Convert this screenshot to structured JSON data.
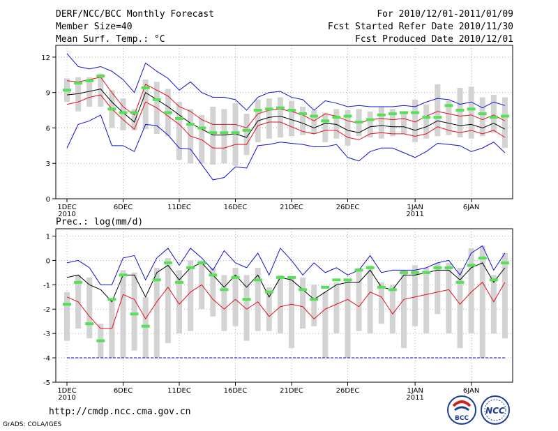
{
  "header": {
    "title": "DERF/NCC/BCC Monthly Forecast",
    "member_size": "Member Size=40",
    "variable_top": "Mean Surf. Temp.: °C",
    "period": "For 2010/12/01-2011/01/09",
    "started": "Fcst Started Refer Date 2010/11/30",
    "produced": "Fcst Produced Date 2010/12/01"
  },
  "footer": {
    "url": "http://cmdp.ncc.cma.gov.cn",
    "credit": "GrADS: COLA/IGES",
    "logo_bcc": "BCC",
    "logo_ncc": "NCC"
  },
  "colors": {
    "box": "#d3d3d3",
    "median": "#55e055",
    "mean": "#000000",
    "spread": "#e01020",
    "extreme": "#1010d0",
    "threshold": "#1010d0"
  },
  "chart_data": [
    {
      "type": "box-plume",
      "title": "Mean Surf. Temp.: °C",
      "xlabel": "",
      "ylabel": "",
      "x_tick_labels": [
        {
          "day": 1,
          "label": "1DEC",
          "sub": "2010"
        },
        {
          "day": 6,
          "label": "6DEC",
          "sub": ""
        },
        {
          "day": 11,
          "label": "11DEC",
          "sub": ""
        },
        {
          "day": 16,
          "label": "16DEC",
          "sub": ""
        },
        {
          "day": 21,
          "label": "21DEC",
          "sub": ""
        },
        {
          "day": 26,
          "label": "26DEC",
          "sub": ""
        },
        {
          "day": 32,
          "label": "1JAN",
          "sub": "2011"
        },
        {
          "day": 37,
          "label": "6JAN",
          "sub": ""
        }
      ],
      "ylim": [
        0,
        13
      ],
      "y_ticks": [
        0,
        3,
        6,
        9,
        12
      ],
      "grid": true,
      "days": [
        1,
        2,
        3,
        4,
        5,
        6,
        7,
        8,
        9,
        10,
        11,
        12,
        13,
        14,
        15,
        16,
        17,
        18,
        19,
        20,
        21,
        22,
        23,
        24,
        25,
        26,
        27,
        28,
        29,
        30,
        31,
        32,
        33,
        34,
        35,
        36,
        37,
        38,
        39,
        40
      ],
      "box_high": [
        10.2,
        10.3,
        10.3,
        10.6,
        9.2,
        8.5,
        7.6,
        10.1,
        9.9,
        9.3,
        8.2,
        7.6,
        7.1,
        7.8,
        7.6,
        8.1,
        7.2,
        8.4,
        8.5,
        8.6,
        8.3,
        7.8,
        7.5,
        7.3,
        7.6,
        7.5,
        7.6,
        7.4,
        7.8,
        7.6,
        7.4,
        8.4,
        8.0,
        9.7,
        8.3,
        9.4,
        9.5,
        8.6,
        8.8,
        8.6
      ],
      "box_low": [
        8.2,
        7.4,
        7.8,
        7.8,
        6.0,
        5.8,
        5.8,
        5.9,
        5.5,
        5.3,
        3.3,
        3.0,
        3.0,
        2.9,
        3.0,
        2.8,
        3.7,
        4.8,
        5.1,
        5.2,
        5.3,
        5.4,
        5.5,
        4.8,
        5.1,
        4.5,
        5.3,
        5.2,
        5.1,
        5.3,
        5.5,
        4.8,
        5.1,
        5.3,
        5.4,
        5.2,
        5.1,
        5.3,
        5.6,
        4.3
      ],
      "median": [
        9.2,
        9.8,
        10.0,
        10.4,
        7.6,
        7.3,
        7.3,
        9.4,
        8.4,
        7.3,
        6.8,
        6.3,
        6.0,
        5.6,
        5.6,
        5.6,
        5.8,
        7.5,
        7.6,
        7.7,
        7.5,
        7.2,
        7.0,
        6.6,
        6.9,
        7.0,
        6.5,
        6.7,
        7.1,
        7.2,
        7.3,
        7.3,
        6.9,
        6.9,
        7.9,
        7.5,
        7.6,
        7.2,
        6.9,
        7.0
      ],
      "series": [
        {
          "name": "max",
          "color": "#1010d0",
          "values": [
            12.3,
            11.2,
            11.0,
            11.2,
            10.8,
            10.1,
            9.0,
            11.5,
            10.8,
            10.2,
            9.2,
            9.9,
            9.0,
            8.6,
            8.6,
            8.4,
            7.5,
            8.6,
            9.0,
            9.1,
            8.6,
            8.4,
            7.5,
            8.3,
            8.1,
            7.8,
            7.9,
            7.8,
            7.8,
            7.8,
            7.9,
            7.8,
            8.2,
            8.5,
            8.4,
            8.0,
            8.2,
            7.7,
            8.2,
            7.9
          ]
        },
        {
          "name": "mean+sd",
          "color": "#e01020",
          "values": [
            10.0,
            9.9,
            10.1,
            10.3,
            9.0,
            7.8,
            7.1,
            9.7,
            9.2,
            8.7,
            7.8,
            7.4,
            6.7,
            6.3,
            6.3,
            6.3,
            6.0,
            7.2,
            7.5,
            7.6,
            7.4,
            7.1,
            6.6,
            7.2,
            7.0,
            6.6,
            6.4,
            6.7,
            6.8,
            6.7,
            6.8,
            6.5,
            7.0,
            7.4,
            7.2,
            7.0,
            7.1,
            6.7,
            7.1,
            6.6
          ]
        },
        {
          "name": "mean",
          "color": "#000000",
          "values": [
            8.8,
            8.9,
            9.1,
            9.3,
            8.2,
            7.3,
            6.5,
            9.0,
            8.4,
            7.8,
            7.1,
            6.4,
            5.9,
            5.4,
            5.4,
            5.5,
            5.2,
            6.6,
            6.9,
            7.0,
            6.7,
            6.4,
            6.0,
            6.4,
            6.3,
            5.8,
            5.6,
            6.1,
            6.2,
            6.1,
            6.1,
            5.8,
            6.1,
            6.6,
            6.4,
            6.2,
            6.3,
            6.0,
            6.4,
            5.9
          ]
        },
        {
          "name": "mean-sd",
          "color": "#e01020",
          "values": [
            8.0,
            8.2,
            8.6,
            8.8,
            7.6,
            6.7,
            5.9,
            8.2,
            7.7,
            7.0,
            6.3,
            5.3,
            5.0,
            4.3,
            4.3,
            4.6,
            4.6,
            6.2,
            6.5,
            6.5,
            6.1,
            5.7,
            5.5,
            5.8,
            5.8,
            5.2,
            5.0,
            5.5,
            5.6,
            5.5,
            5.5,
            5.3,
            5.5,
            6.1,
            5.8,
            5.6,
            5.8,
            5.5,
            5.8,
            5.2
          ]
        },
        {
          "name": "min",
          "color": "#1010d0",
          "values": [
            4.3,
            6.3,
            6.6,
            7.1,
            4.5,
            4.5,
            4.0,
            6.3,
            6.2,
            5.4,
            4.3,
            4.2,
            2.9,
            1.6,
            1.8,
            2.7,
            2.6,
            4.5,
            4.6,
            4.8,
            4.7,
            4.6,
            4.4,
            4.4,
            4.6,
            3.5,
            3.2,
            4.0,
            4.3,
            4.3,
            3.9,
            3.5,
            4.0,
            4.7,
            4.6,
            4.5,
            4.0,
            4.3,
            4.8,
            3.9
          ]
        }
      ]
    },
    {
      "type": "box-plume",
      "title": "Prec.: log(mm/d)",
      "xlabel": "",
      "ylabel": "",
      "x_tick_labels": [
        {
          "day": 1,
          "label": "1DEC",
          "sub": "2010"
        },
        {
          "day": 6,
          "label": "6DEC",
          "sub": ""
        },
        {
          "day": 11,
          "label": "11DEC",
          "sub": ""
        },
        {
          "day": 16,
          "label": "16DEC",
          "sub": ""
        },
        {
          "day": 21,
          "label": "21DEC",
          "sub": ""
        },
        {
          "day": 26,
          "label": "26DEC",
          "sub": ""
        },
        {
          "day": 32,
          "label": "1JAN",
          "sub": "2011"
        },
        {
          "day": 37,
          "label": "6JAN",
          "sub": ""
        }
      ],
      "ylim": [
        -5,
        1.3
      ],
      "y_ticks": [
        -5,
        -4,
        -3,
        -2,
        -1,
        0,
        1
      ],
      "grid": true,
      "threshold": -4,
      "days": [
        1,
        2,
        3,
        4,
        5,
        6,
        7,
        8,
        9,
        10,
        11,
        12,
        13,
        14,
        15,
        16,
        17,
        18,
        19,
        20,
        21,
        22,
        23,
        24,
        25,
        26,
        27,
        28,
        29,
        30,
        31,
        32,
        33,
        34,
        35,
        36,
        37,
        38,
        39,
        40
      ],
      "box_high": [
        -1.3,
        -0.6,
        -0.7,
        -2.6,
        -1.6,
        -0.4,
        -0.5,
        -1.5,
        -0.3,
        0.1,
        -0.4,
        0.0,
        0.0,
        -0.3,
        -0.6,
        -0.3,
        -0.6,
        -0.3,
        -1.1,
        -0.6,
        -0.7,
        -0.7,
        -1.0,
        -1.3,
        -0.9,
        -0.8,
        -0.3,
        -0.2,
        -0.9,
        -1.0,
        -0.4,
        -0.2,
        -0.3,
        -0.1,
        -0.1,
        -0.3,
        0.5,
        0.6,
        -0.6,
        0.3
      ],
      "box_low": [
        -3.3,
        -2.8,
        -3.2,
        -4.0,
        -4.0,
        -4.0,
        -3.7,
        -4.0,
        -4.0,
        -3.4,
        -3.0,
        -2.9,
        -2.0,
        -2.3,
        -2.9,
        -2.7,
        -3.3,
        -2.9,
        -2.9,
        -3.0,
        -3.6,
        -2.8,
        -2.7,
        -4.0,
        -3.0,
        -4.0,
        -2.9,
        -3.0,
        -2.6,
        -3.0,
        -3.6,
        -2.7,
        -3.0,
        -2.2,
        -3.0,
        -3.6,
        -3.0,
        -4.0,
        -3.0,
        -3.2
      ],
      "median": [
        -1.8,
        -0.9,
        -2.6,
        -3.3,
        -1.6,
        -0.6,
        -2.2,
        -2.7,
        -0.8,
        -0.1,
        -0.9,
        -0.3,
        -0.1,
        -0.6,
        -1.2,
        -0.7,
        -1.6,
        -0.8,
        -1.3,
        -0.7,
        -0.7,
        -1.2,
        -1.6,
        -1.1,
        -0.8,
        -0.8,
        -0.4,
        -0.3,
        -1.1,
        -1.2,
        -0.5,
        -0.5,
        -0.5,
        -0.3,
        -0.3,
        -0.9,
        -0.2,
        0.1,
        -0.8,
        -0.1
      ],
      "series": [
        {
          "name": "max",
          "color": "#1010d0",
          "values": [
            -0.1,
            0.0,
            -0.3,
            -1.0,
            -1.0,
            0.1,
            0.2,
            -0.8,
            0.1,
            0.5,
            -0.2,
            0.5,
            0.1,
            -0.4,
            0.4,
            -0.1,
            -0.3,
            0.3,
            -0.6,
            0.5,
            0.0,
            -0.6,
            -0.1,
            -0.5,
            -0.3,
            -0.6,
            -0.4,
            0.2,
            -0.5,
            -0.4,
            -0.4,
            -0.4,
            -0.3,
            -0.1,
            0.0,
            -0.6,
            0.3,
            0.6,
            -0.4,
            0.3
          ]
        },
        {
          "name": "mean",
          "color": "#000000",
          "values": [
            -0.7,
            -0.6,
            -1.0,
            -1.2,
            -1.7,
            -0.6,
            -0.6,
            -1.5,
            -0.5,
            -0.2,
            -0.8,
            -0.3,
            -0.1,
            -0.6,
            -1.1,
            -0.6,
            -1.1,
            -0.6,
            -1.5,
            -0.7,
            -0.8,
            -1.2,
            -1.6,
            -1.3,
            -1.0,
            -0.9,
            -0.9,
            -0.4,
            -1.1,
            -1.2,
            -0.6,
            -0.6,
            -0.5,
            -0.4,
            -0.4,
            -0.8,
            -0.3,
            -0.1,
            -0.9,
            -0.3
          ]
        },
        {
          "name": "mean-sd",
          "color": "#e01020",
          "values": [
            -1.5,
            -1.7,
            -2.3,
            -2.8,
            -2.8,
            -1.4,
            -1.6,
            -2.4,
            -1.7,
            -1.1,
            -1.8,
            -1.3,
            -1.0,
            -1.6,
            -2.0,
            -1.6,
            -2.0,
            -1.7,
            -2.3,
            -1.9,
            -1.8,
            -1.9,
            -2.4,
            -2.0,
            -1.8,
            -1.6,
            -1.9,
            -1.3,
            -1.5,
            -2.2,
            -1.6,
            -1.5,
            -1.4,
            -1.3,
            -1.2,
            -1.8,
            -1.3,
            -0.9,
            -1.7,
            -0.9
          ]
        },
        {
          "name": "min",
          "color": "#1010d0",
          "values": [
            -4.0,
            -4.0,
            -4.0,
            -4.0,
            -4.0,
            -4.0,
            -4.0,
            -4.0,
            -4.0,
            -4.0,
            -4.0,
            -4.0,
            -4.0,
            -4.0,
            -4.0,
            -4.0,
            -4.0,
            -4.0,
            -4.0,
            -4.0,
            -4.0,
            -4.0,
            -4.0,
            -4.0,
            -4.0,
            -4.0,
            -4.0,
            -4.0,
            -4.0,
            -4.0,
            -4.0,
            -4.0,
            -4.0,
            -4.0,
            -4.0,
            -4.0,
            -4.0,
            -4.0,
            -4.0,
            -4.0
          ]
        }
      ]
    }
  ]
}
